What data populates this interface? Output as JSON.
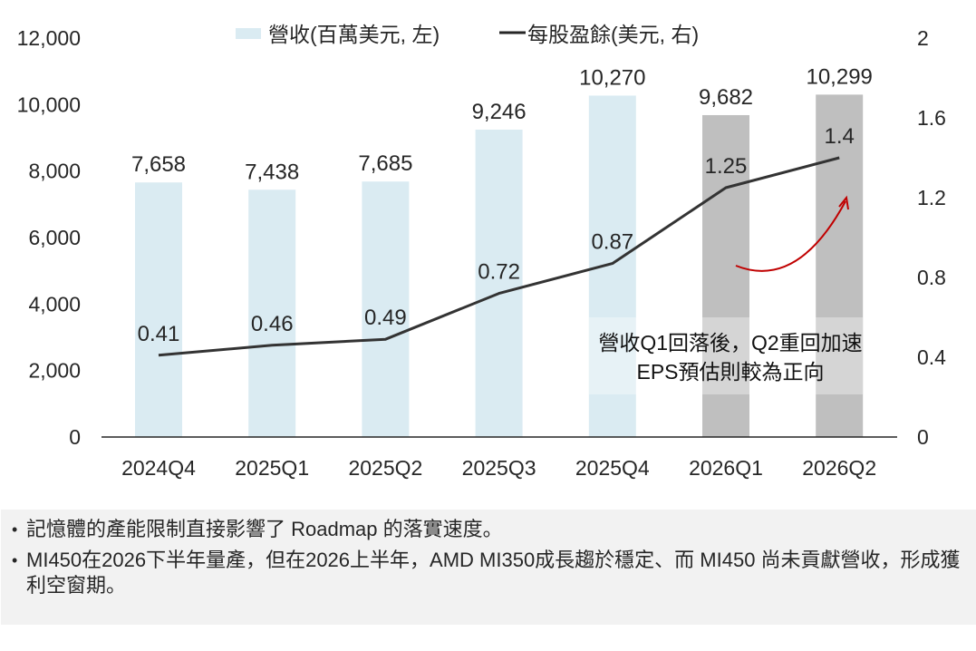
{
  "chart_data": {
    "type": "bar+line",
    "categories": [
      "2024Q4",
      "2025Q1",
      "2025Q2",
      "2025Q3",
      "2025Q4",
      "2026Q1",
      "2026Q2"
    ],
    "series": [
      {
        "name": "營收(百萬美元, 左)",
        "type": "bar",
        "axis": "left",
        "values": [
          7658,
          7438,
          7685,
          9246,
          10270,
          9682,
          10299
        ],
        "labels": [
          "7,658",
          "7,438",
          "7,685",
          "9,246",
          "10,270",
          "9,682",
          "10,299"
        ],
        "colors": [
          "#daebf2",
          "#daebf2",
          "#daebf2",
          "#daebf2",
          "#daebf2",
          "#bfbfbf",
          "#bfbfbf"
        ]
      },
      {
        "name": "每股盈餘(美元, 右)",
        "type": "line",
        "axis": "right",
        "values": [
          0.41,
          0.46,
          0.49,
          0.72,
          0.87,
          1.25,
          1.4
        ],
        "labels": [
          "0.41",
          "0.46",
          "0.49",
          "0.72",
          "0.87",
          "1.25",
          "1.4"
        ],
        "color": "#333333"
      }
    ],
    "y_left": {
      "range": [
        0,
        12000
      ],
      "ticks": [
        "0",
        "2,000",
        "4,000",
        "6,000",
        "8,000",
        "10,000",
        "12,000"
      ]
    },
    "y_right": {
      "range": [
        0,
        2
      ],
      "ticks": [
        "0",
        "0.4",
        "0.8",
        "1.2",
        "1.6",
        "2"
      ]
    },
    "legend": {
      "placement": "top-center",
      "items": [
        {
          "label": "營收(百萬美元, 左)",
          "marker": "bar",
          "color": "#daebf2"
        },
        {
          "label": "每股盈餘(美元, 右)",
          "marker": "line",
          "color": "#262626"
        }
      ]
    },
    "annotation": {
      "lines": [
        "營收Q1回落後，Q2重回加速",
        "EPS預估則較為正向"
      ],
      "arrow_color": "#c00000"
    },
    "grid": false
  },
  "notes": [
    "記憶體的產能限制直接影響了 Roadmap 的落實速度。",
    "MI450在2026下半年量產，但在2026上半年，AMD MI350成長趨於穩定、而 MI450 尚未貢獻營收，形成獲利空窗期。"
  ],
  "bullet_glyph": "•"
}
